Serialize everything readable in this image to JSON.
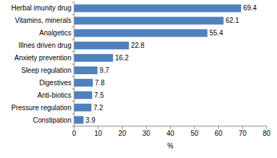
{
  "chart_data": {
    "type": "bar",
    "orientation": "horizontal",
    "categories": [
      "Herbal imunity drug",
      "Vitamins, minerals",
      "Analgetics",
      "Illnes driven drug",
      "Anxiety prevention",
      "Sleep regulation",
      "Digestives",
      "Anti-biotics",
      "Pressure regulation",
      "Constipation"
    ],
    "values": [
      69.4,
      62.1,
      55.4,
      22.8,
      16.2,
      9.7,
      7.8,
      7.5,
      7.2,
      3.9
    ],
    "color": "#4f81bd",
    "xlabel": "%",
    "xlim": [
      0,
      80
    ],
    "xticks": [
      0,
      10,
      20,
      30,
      40,
      50,
      60,
      70,
      80
    ],
    "grid": false,
    "data_labels": true
  }
}
